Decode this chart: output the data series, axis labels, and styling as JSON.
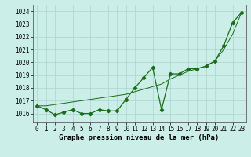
{
  "line1_x": [
    0,
    1,
    2,
    3,
    4,
    5,
    6,
    7,
    8,
    9,
    10,
    11,
    12,
    13,
    14,
    15,
    16,
    17,
    18,
    19,
    20,
    21,
    22,
    23
  ],
  "line1_y": [
    1016.6,
    1016.3,
    1015.9,
    1016.1,
    1016.3,
    1016.0,
    1016.0,
    1016.3,
    1016.2,
    1016.2,
    1017.1,
    1018.0,
    1018.8,
    1019.6,
    1016.3,
    1019.1,
    1019.1,
    1019.5,
    1019.5,
    1019.7,
    1020.1,
    1021.3,
    1023.1,
    1023.9
  ],
  "line2_x": [
    0,
    1,
    2,
    3,
    4,
    5,
    6,
    7,
    8,
    9,
    10,
    11,
    12,
    13,
    14,
    15,
    16,
    17,
    18,
    19,
    20,
    21,
    22,
    23
  ],
  "line2_y": [
    1016.6,
    1016.6,
    1016.7,
    1016.8,
    1016.9,
    1017.0,
    1017.1,
    1017.2,
    1017.3,
    1017.4,
    1017.5,
    1017.7,
    1017.9,
    1018.1,
    1018.3,
    1018.7,
    1019.0,
    1019.3,
    1019.5,
    1019.7,
    1020.1,
    1021.0,
    1022.2,
    1023.9
  ],
  "line_color": "#1a6b1a",
  "bg_color": "#cceee8",
  "grid_color": "#aad4ce",
  "xlabel": "Graphe pression niveau de la mer (hPa)",
  "ylim": [
    1015.3,
    1024.5
  ],
  "xlim": [
    -0.5,
    23.5
  ],
  "yticks": [
    1016,
    1017,
    1018,
    1019,
    1020,
    1021,
    1022,
    1023,
    1024
  ],
  "xticks": [
    0,
    1,
    2,
    3,
    4,
    5,
    6,
    7,
    8,
    9,
    10,
    11,
    12,
    13,
    14,
    15,
    16,
    17,
    18,
    19,
    20,
    21,
    22,
    23
  ],
  "xlabel_fontsize": 6.5,
  "tick_fontsize": 5.5,
  "marker_size": 2.2,
  "linewidth1": 0.9,
  "linewidth2": 0.7
}
